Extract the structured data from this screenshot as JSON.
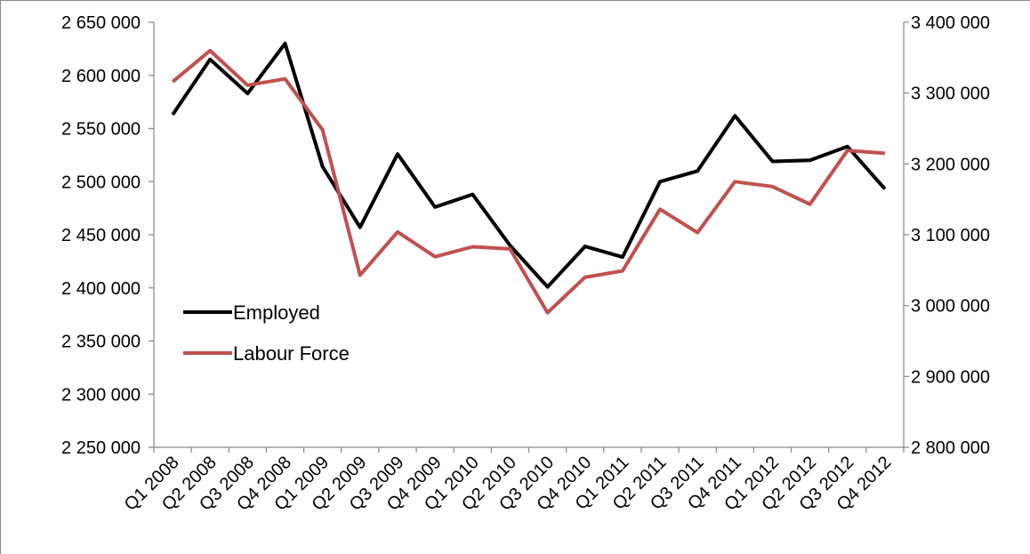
{
  "chart_data": {
    "type": "line",
    "title": "",
    "xlabel": "",
    "ylabel": "",
    "categories": [
      "Q1 2008",
      "Q2 2008",
      "Q3 2008",
      "Q4 2008",
      "Q1 2009",
      "Q2 2009",
      "Q3 2009",
      "Q4 2009",
      "Q1 2010",
      "Q2 2010",
      "Q3 2010",
      "Q4 2010",
      "Q1 2011",
      "Q2 2011",
      "Q3 2011",
      "Q4 2011",
      "Q1 2012",
      "Q2 2012",
      "Q3 2012",
      "Q4 2012"
    ],
    "y_left": {
      "min": 2250000,
      "max": 2650000,
      "step": 50000,
      "ticks": [
        "2 250 000",
        "2 300 000",
        "2 350 000",
        "2 400 000",
        "2 450 000",
        "2 500 000",
        "2 550 000",
        "2 600 000",
        "2 650 000"
      ]
    },
    "y_right": {
      "min": 2800000,
      "max": 3400000,
      "step": 100000,
      "ticks": [
        "2 800 000",
        "2 900 000",
        "3 000 000",
        "3 100 000",
        "3 200 000",
        "3 300 000",
        "3 400 000"
      ]
    },
    "grid": false,
    "legend_position": "left-middle",
    "series": [
      {
        "name": "Employed",
        "axis": "left",
        "color": "#000000",
        "values": [
          2563000,
          2615000,
          2583000,
          2630000,
          2514000,
          2457000,
          2526000,
          2476000,
          2488000,
          2440000,
          2401000,
          2439000,
          2429000,
          2500000,
          2510000,
          2562000,
          2519000,
          2520000,
          2533000,
          2493000
        ]
      },
      {
        "name": "Labour Force",
        "axis": "right",
        "color": "#c0504d",
        "values": [
          3316000,
          3360000,
          3311000,
          3320000,
          3248000,
          3043000,
          3104000,
          3069000,
          3083000,
          3080000,
          2990000,
          3040000,
          3049000,
          3136000,
          3103000,
          3175000,
          3168000,
          3143000,
          3219000,
          3215000
        ]
      }
    ]
  }
}
